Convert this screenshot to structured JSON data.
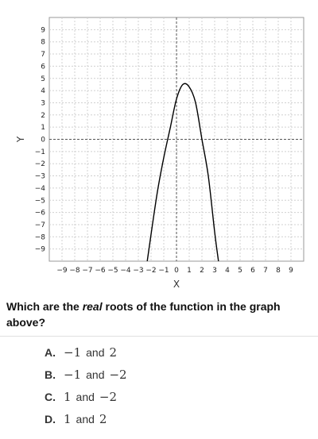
{
  "chart_data": {
    "type": "line",
    "title": "",
    "xlabel": "X",
    "ylabel": "Y",
    "xlim": [
      -10,
      10
    ],
    "ylim": [
      -10,
      10
    ],
    "grid": true,
    "x_ticks": [
      -9,
      -8,
      -7,
      -6,
      -5,
      -4,
      -3,
      -2,
      -1,
      0,
      1,
      2,
      3,
      4,
      5,
      6,
      7,
      8,
      9
    ],
    "y_ticks": [
      9,
      8,
      7,
      6,
      5,
      4,
      3,
      2,
      1,
      0,
      -1,
      -2,
      -3,
      -4,
      -5,
      -6,
      -7,
      -8,
      -9
    ],
    "series": [
      {
        "x": [
          -2.3,
          -2.0,
          -1.5,
          -1.0,
          -0.5,
          0.0,
          0.5,
          1.0,
          1.5,
          2.0,
          2.5,
          3.0,
          3.3
        ],
        "y": [
          -10.0,
          -7.8,
          -4.3,
          -1.5,
          0.9,
          3.3,
          4.5,
          4.3,
          3.0,
          0.0,
          -3.0,
          -7.6,
          -10.0
        ]
      }
    ]
  },
  "question": {
    "before": "Which are the ",
    "emphasis": "real",
    "after": " roots of the function in the graph above?"
  },
  "choices": [
    {
      "letter": "A.",
      "first": "−1",
      "joiner": "and",
      "second": "2"
    },
    {
      "letter": "B.",
      "first": "−1",
      "joiner": "and",
      "second": "−2"
    },
    {
      "letter": "C.",
      "first": "1",
      "joiner": "and",
      "second": "−2"
    },
    {
      "letter": "D.",
      "first": "1",
      "joiner": "and",
      "second": "2"
    }
  ]
}
